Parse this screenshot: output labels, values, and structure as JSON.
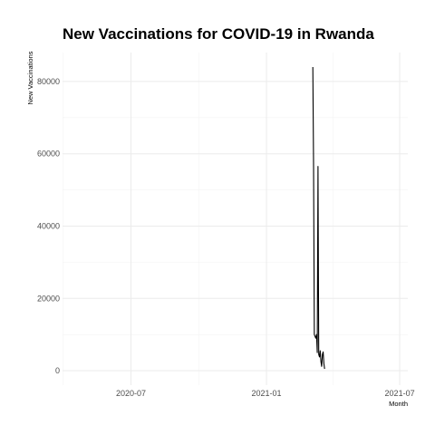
{
  "chart_data": {
    "type": "line",
    "title": "New Vaccinations for COVID-19 in Rwanda",
    "xlabel": "Month",
    "ylabel": "New Vaccinations",
    "x_range": [
      "2020-03-30",
      "2021-07-12"
    ],
    "ylim": [
      -4000,
      88000
    ],
    "x_ticks": [
      {
        "date": "2020-07-01",
        "label": "2020-07"
      },
      {
        "date": "2021-01-01",
        "label": "2021-01"
      },
      {
        "date": "2021-07-01",
        "label": "2021-07"
      }
    ],
    "y_ticks": [
      {
        "value": 0,
        "label": "0"
      },
      {
        "value": 20000,
        "label": "20000"
      },
      {
        "value": 40000,
        "label": "40000"
      },
      {
        "value": 60000,
        "label": "60000"
      },
      {
        "value": 80000,
        "label": "80000"
      }
    ],
    "grid": true,
    "line_color": "#000000",
    "series": [
      {
        "points": [
          {
            "x": "2021-03-05",
            "y": 84000
          },
          {
            "x": "2021-03-06",
            "y": 56000
          },
          {
            "x": "2021-03-07",
            "y": 10000
          },
          {
            "x": "2021-03-08",
            "y": 9500
          },
          {
            "x": "2021-03-09",
            "y": 9000
          },
          {
            "x": "2021-03-10",
            "y": 10000
          },
          {
            "x": "2021-03-11",
            "y": 5000
          },
          {
            "x": "2021-03-12",
            "y": 56500
          },
          {
            "x": "2021-03-13",
            "y": 4500
          },
          {
            "x": "2021-03-14",
            "y": 3800
          },
          {
            "x": "2021-03-15",
            "y": 5500
          },
          {
            "x": "2021-03-16",
            "y": 2500
          },
          {
            "x": "2021-03-17",
            "y": 1200
          },
          {
            "x": "2021-03-18",
            "y": 4500
          },
          {
            "x": "2021-03-19",
            "y": 5200
          },
          {
            "x": "2021-03-20",
            "y": 2000
          },
          {
            "x": "2021-03-21",
            "y": 500
          }
        ]
      }
    ]
  }
}
